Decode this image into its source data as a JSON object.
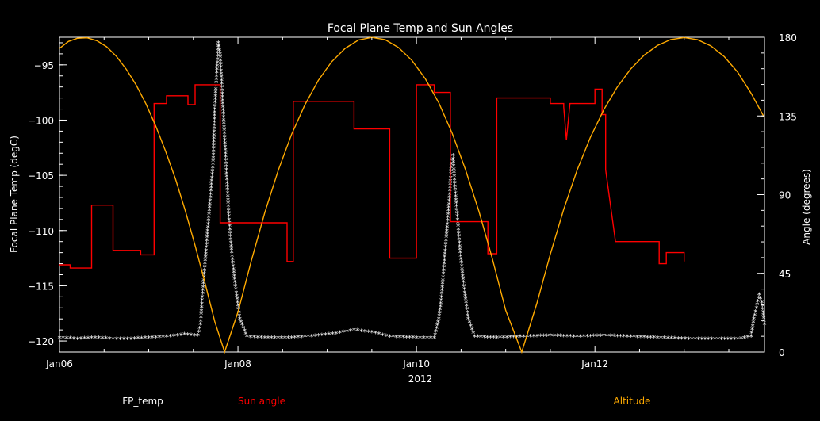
{
  "chart_data": {
    "type": "line",
    "title": "Focal Plane Temp and Sun Angles",
    "xlabel": "2012",
    "ylabel_left": "Focal Plane Temp (degC)",
    "ylabel_right": "Angle (degrees)",
    "x_ticks": [
      "Jan06",
      "Jan08",
      "Jan10",
      "Jan12"
    ],
    "x_tick_positions_days": [
      6,
      8,
      10,
      12
    ],
    "xlim_days": [
      6,
      13.9
    ],
    "ylim_left": [
      -121,
      -92.5
    ],
    "ylim_right": [
      0,
      180
    ],
    "y_left_ticks": [
      "-95",
      "-100",
      "-105",
      "-110",
      "-115",
      "-120"
    ],
    "y_left_tick_values": [
      -95,
      -100,
      -105,
      -110,
      -115,
      -120
    ],
    "y_right_ticks": [
      "0",
      "45",
      "90",
      "135",
      "180"
    ],
    "y_right_tick_values": [
      0,
      45,
      90,
      135,
      180
    ],
    "legend": [
      {
        "label": "FP_temp",
        "color": "#ffffff"
      },
      {
        "label": "Sun angle",
        "color": "#ff0000"
      },
      {
        "label": "Altitude",
        "color": "#ffaa00"
      }
    ],
    "series": [
      {
        "name": "FP_temp",
        "axis": "left",
        "color": "#ffffff",
        "marker": "*",
        "points": [
          [
            6.0,
            -119.7
          ],
          [
            6.2,
            -119.8
          ],
          [
            6.4,
            -119.7
          ],
          [
            6.6,
            -119.8
          ],
          [
            6.8,
            -119.8
          ],
          [
            7.0,
            -119.7
          ],
          [
            7.2,
            -119.6
          ],
          [
            7.4,
            -119.4
          ],
          [
            7.55,
            -119.5
          ],
          [
            7.58,
            -118.5
          ],
          [
            7.6,
            -116
          ],
          [
            7.63,
            -113
          ],
          [
            7.66,
            -110
          ],
          [
            7.69,
            -107
          ],
          [
            7.72,
            -104
          ],
          [
            7.74,
            -99
          ],
          [
            7.76,
            -96
          ],
          [
            7.78,
            -93
          ],
          [
            7.8,
            -94
          ],
          [
            7.82,
            -97
          ],
          [
            7.84,
            -100
          ],
          [
            7.86,
            -103
          ],
          [
            7.88,
            -106
          ],
          [
            7.9,
            -109
          ],
          [
            7.93,
            -112
          ],
          [
            7.97,
            -115
          ],
          [
            8.02,
            -118
          ],
          [
            8.1,
            -119.6
          ],
          [
            8.3,
            -119.7
          ],
          [
            8.6,
            -119.7
          ],
          [
            8.9,
            -119.5
          ],
          [
            9.1,
            -119.3
          ],
          [
            9.3,
            -119.0
          ],
          [
            9.5,
            -119.2
          ],
          [
            9.7,
            -119.6
          ],
          [
            10.0,
            -119.7
          ],
          [
            10.2,
            -119.7
          ],
          [
            10.25,
            -118
          ],
          [
            10.28,
            -116
          ],
          [
            10.31,
            -113
          ],
          [
            10.34,
            -110
          ],
          [
            10.37,
            -107
          ],
          [
            10.39,
            -104
          ],
          [
            10.41,
            -103.2
          ],
          [
            10.43,
            -106
          ],
          [
            10.46,
            -109
          ],
          [
            10.49,
            -112
          ],
          [
            10.53,
            -115
          ],
          [
            10.58,
            -118
          ],
          [
            10.65,
            -119.6
          ],
          [
            10.9,
            -119.7
          ],
          [
            11.2,
            -119.6
          ],
          [
            11.5,
            -119.5
          ],
          [
            11.8,
            -119.6
          ],
          [
            12.1,
            -119.5
          ],
          [
            12.4,
            -119.6
          ],
          [
            12.7,
            -119.7
          ],
          [
            13.05,
            -119.8
          ],
          [
            13.6,
            -119.8
          ],
          [
            13.75,
            -119.6
          ],
          [
            13.78,
            -118
          ],
          [
            13.81,
            -117
          ],
          [
            13.84,
            -115.8
          ],
          [
            13.87,
            -116.5
          ],
          [
            13.9,
            -118.5
          ]
        ]
      },
      {
        "name": "Sun angle",
        "axis": "left",
        "color": "#ff0000",
        "points": [
          [
            6.0,
            -113.1
          ],
          [
            6.12,
            -113.1
          ],
          [
            6.12,
            -113.4
          ],
          [
            6.36,
            -113.4
          ],
          [
            6.36,
            -107.7
          ],
          [
            6.6,
            -107.7
          ],
          [
            6.6,
            -111.8
          ],
          [
            6.91,
            -111.8
          ],
          [
            6.91,
            -112.2
          ],
          [
            7.06,
            -112.2
          ],
          [
            7.06,
            -98.5
          ],
          [
            7.2,
            -98.5
          ],
          [
            7.2,
            -97.8
          ],
          [
            7.44,
            -97.8
          ],
          [
            7.44,
            -98.6
          ],
          [
            7.52,
            -98.6
          ],
          [
            7.52,
            -96.8
          ],
          [
            7.8,
            -96.8
          ],
          [
            7.8,
            -109.3
          ],
          [
            8.55,
            -109.3
          ],
          [
            8.55,
            -112.8
          ],
          [
            8.62,
            -112.8
          ],
          [
            8.62,
            -98.3
          ],
          [
            9.3,
            -98.3
          ],
          [
            9.3,
            -100.8
          ],
          [
            9.7,
            -100.8
          ],
          [
            9.7,
            -112.5
          ],
          [
            10.0,
            -112.5
          ],
          [
            10.0,
            -96.8
          ],
          [
            10.2,
            -96.8
          ],
          [
            10.2,
            -97.5
          ],
          [
            10.38,
            -97.5
          ],
          [
            10.38,
            -109.2
          ],
          [
            10.8,
            -109.2
          ],
          [
            10.8,
            -112.1
          ],
          [
            10.9,
            -112.1
          ],
          [
            10.9,
            -98.0
          ],
          [
            11.5,
            -98.0
          ],
          [
            11.5,
            -98.5
          ],
          [
            11.65,
            -98.5
          ],
          [
            11.65,
            -98.8
          ],
          [
            11.68,
            -101.8
          ],
          [
            11.72,
            -98.5
          ],
          [
            12.0,
            -98.5
          ],
          [
            12.0,
            -97.2
          ],
          [
            12.08,
            -97.2
          ],
          [
            12.08,
            -99.5
          ],
          [
            12.12,
            -99.5
          ],
          [
            12.12,
            -104.5
          ],
          [
            12.23,
            -111.0
          ],
          [
            12.72,
            -111.0
          ],
          [
            12.72,
            -113.0
          ],
          [
            12.8,
            -113.0
          ],
          [
            12.8,
            -112.0
          ],
          [
            13.0,
            -112.0
          ],
          [
            13.0,
            -112.8
          ]
        ]
      },
      {
        "name": "Altitude",
        "axis": "right",
        "color": "#ffaa00",
        "points": [
          [
            6.0,
            173.6
          ],
          [
            6.1,
            177.6
          ],
          [
            6.2,
            179.4
          ],
          [
            6.31,
            179.7
          ],
          [
            6.42,
            178.0
          ],
          [
            6.53,
            174.5
          ],
          [
            6.64,
            169.0
          ],
          [
            6.75,
            161.6
          ],
          [
            6.86,
            152.6
          ],
          [
            6.97,
            141.8
          ],
          [
            7.08,
            129.1
          ],
          [
            7.19,
            114.7
          ],
          [
            7.3,
            98.9
          ],
          [
            7.41,
            80.7
          ],
          [
            7.52,
            60.9
          ],
          [
            7.63,
            39.7
          ],
          [
            7.74,
            17.4
          ],
          [
            7.85,
            0
          ],
          [
            7.85,
            0
          ],
          [
            8.0,
            22.9
          ],
          [
            8.15,
            52.2
          ],
          [
            8.3,
            79.6
          ],
          [
            8.45,
            103.7
          ],
          [
            8.6,
            124.4
          ],
          [
            8.75,
            141.4
          ],
          [
            8.9,
            155.3
          ],
          [
            9.05,
            166.0
          ],
          [
            9.2,
            173.6
          ],
          [
            9.35,
            178.4
          ],
          [
            9.5,
            179.9
          ],
          [
            9.65,
            178.6
          ],
          [
            9.8,
            174.1
          ],
          [
            9.95,
            166.7
          ],
          [
            10.1,
            156.2
          ],
          [
            10.25,
            142.5
          ],
          [
            10.4,
            125.2
          ],
          [
            10.55,
            104.3
          ],
          [
            10.7,
            80.5
          ],
          [
            10.85,
            53.4
          ],
          [
            11.0,
            23.8
          ],
          [
            11.18,
            0
          ],
          [
            11.18,
            0
          ],
          [
            11.35,
            27.9
          ],
          [
            11.5,
            55.9
          ],
          [
            11.65,
            81.6
          ],
          [
            11.8,
            104.0
          ],
          [
            11.95,
            122.9
          ],
          [
            12.1,
            138.6
          ],
          [
            12.25,
            151.5
          ],
          [
            12.4,
            161.8
          ],
          [
            12.55,
            169.7
          ],
          [
            12.7,
            175.3
          ],
          [
            12.85,
            178.7
          ],
          [
            13.0,
            179.8
          ],
          [
            13.15,
            178.6
          ],
          [
            13.3,
            175.0
          ],
          [
            13.45,
            168.9
          ],
          [
            13.6,
            160.0
          ],
          [
            13.75,
            148.0
          ],
          [
            13.9,
            134.0
          ]
        ]
      }
    ]
  }
}
